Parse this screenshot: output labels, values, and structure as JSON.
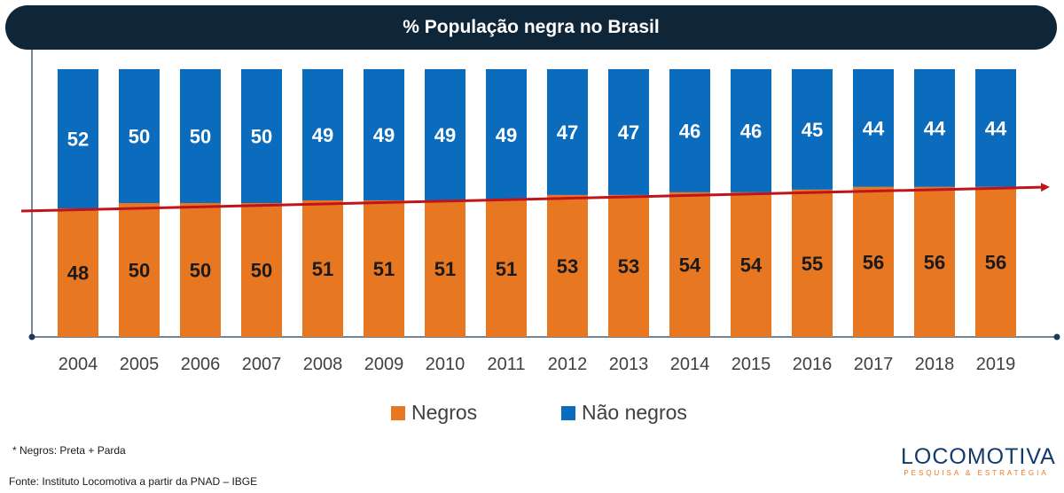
{
  "chart_data": {
    "type": "bar",
    "stacked": true,
    "title": "% População negra no Brasil",
    "categories": [
      "2004",
      "2005",
      "2006",
      "2007",
      "2008",
      "2009",
      "2010",
      "2011",
      "2012",
      "2013",
      "2014",
      "2015",
      "2016",
      "2017",
      "2018",
      "2019"
    ],
    "series": [
      {
        "name": "Negros",
        "color": "#e87722",
        "values": [
          48,
          50,
          50,
          50,
          51,
          51,
          51,
          51,
          53,
          53,
          54,
          54,
          55,
          56,
          56,
          56
        ]
      },
      {
        "name": "Não negros",
        "color": "#0b6bbd",
        "values": [
          52,
          50,
          50,
          50,
          49,
          49,
          49,
          49,
          47,
          47,
          46,
          46,
          45,
          44,
          44,
          44
        ]
      }
    ],
    "trend_line_color": "#c0141b",
    "ylim": [
      0,
      100
    ],
    "legend_position": "bottom"
  },
  "footnote": "* Negros: Preta + Parda",
  "source": "Fonte: Instituto Locomotiva a partir da PNAD – IBGE",
  "logo": {
    "name": "LOCOMOTIVA",
    "tagline": "PESQUISA & ESTRATÉGIA"
  }
}
